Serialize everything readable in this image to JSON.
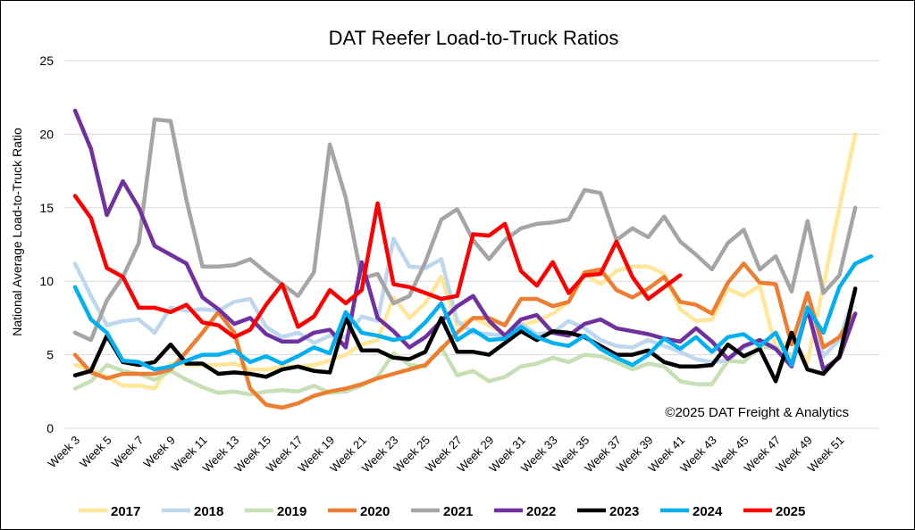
{
  "chart_data": {
    "type": "line",
    "title": "DAT Reefer Load-to-Truck Ratios",
    "y_label": "National Average Load-to-Truck Ratio",
    "annotation": "©2025 DAT Freight & Analytics",
    "categories": [
      "Week 3",
      null,
      "Week 5",
      null,
      "Week 7",
      null,
      "Week 9",
      null,
      "Week 11",
      null,
      "Week 13",
      null,
      "Week 15",
      null,
      "Week 17",
      null,
      "Week 19",
      null,
      "Week 21",
      null,
      "Week 23",
      null,
      "Week 25",
      null,
      "Week 27",
      null,
      "Week 29",
      null,
      "Week 31",
      null,
      "Week 33",
      null,
      "Week 35",
      null,
      "Week 37",
      null,
      "Week 39",
      null,
      "Week 41",
      null,
      "Week 43",
      null,
      "Week 45",
      null,
      "Week 47",
      null,
      "Week 49",
      null,
      "Week 51",
      null,
      null
    ],
    "ylim": [
      0,
      25
    ],
    "yticks": [
      0,
      5,
      10,
      15,
      20,
      25
    ],
    "grid": true,
    "legend": "bottom",
    "series": [
      {
        "name": "2017",
        "color": "#ffe699",
        "values": [
          4.3,
          4.0,
          3.5,
          2.9,
          2.9,
          2.7,
          4.4,
          4.3,
          4.3,
          4.3,
          4.4,
          4.0,
          4.0,
          4.2,
          4.2,
          4.3,
          4.6,
          5.0,
          5.7,
          6.0,
          8.9,
          7.5,
          8.5,
          10.3,
          7.0,
          7.5,
          7.0,
          6.4,
          7.0,
          7.3,
          7.8,
          8.6,
          10.5,
          9.8,
          10.7,
          11.0,
          11.0,
          10.5,
          8.1,
          7.3,
          7.4,
          9.5,
          9.0,
          9.7,
          5.5,
          6.0,
          4.5,
          9.7,
          15.0,
          20.0,
          null
        ]
      },
      {
        "name": "2018",
        "color": "#bdd7ee",
        "values": [
          11.2,
          9.0,
          7.0,
          7.3,
          7.4,
          6.5,
          8.2,
          8.0,
          8.1,
          8.0,
          8.6,
          8.8,
          6.9,
          6.2,
          6.5,
          5.8,
          6.3,
          6.2,
          7.6,
          7.3,
          12.9,
          11.0,
          10.9,
          11.5,
          7.3,
          6.5,
          6.4,
          6.3,
          7.1,
          6.4,
          6.5,
          7.3,
          6.8,
          6.0,
          5.6,
          5.5,
          6.0,
          5.6,
          5.2,
          4.7,
          4.5,
          4.6,
          5.5,
          6.0,
          5.5,
          4.5,
          8.3,
          4.9,
          6.0,
          9.3,
          null
        ]
      },
      {
        "name": "2019",
        "color": "#c5e0b4",
        "values": [
          2.7,
          3.2,
          4.3,
          3.9,
          3.7,
          3.3,
          3.9,
          3.3,
          2.8,
          2.4,
          2.5,
          2.3,
          2.5,
          2.6,
          2.5,
          2.9,
          2.4,
          2.5,
          2.9,
          3.5,
          5.1,
          4.3,
          4.2,
          5.5,
          3.6,
          3.9,
          3.2,
          3.5,
          4.2,
          4.4,
          4.8,
          4.5,
          5.0,
          4.9,
          4.5,
          4.0,
          4.4,
          4.2,
          3.2,
          3.0,
          3.0,
          4.6,
          4.5,
          5.6,
          5.4,
          5.0,
          null,
          null,
          null,
          null,
          null
        ]
      },
      {
        "name": "2020",
        "color": "#ed7d31",
        "values": [
          5.0,
          3.8,
          3.4,
          3.7,
          3.7,
          3.7,
          4.0,
          5.2,
          6.5,
          7.9,
          6.5,
          2.7,
          1.6,
          1.4,
          1.7,
          2.2,
          2.5,
          2.7,
          3.0,
          3.4,
          3.7,
          4.0,
          4.3,
          5.4,
          6.5,
          7.5,
          7.5,
          7.0,
          8.8,
          8.8,
          8.3,
          8.6,
          10.6,
          10.8,
          9.4,
          8.9,
          9.5,
          10.3,
          8.6,
          8.4,
          7.8,
          9.9,
          11.2,
          9.9,
          9.8,
          5.7,
          9.2,
          5.5,
          6.2,
          7.8,
          null
        ]
      },
      {
        "name": "2021",
        "color": "#a5a5a5",
        "values": [
          6.5,
          6.0,
          8.7,
          10.3,
          12.6,
          21.0,
          20.9,
          15.5,
          11.0,
          11.0,
          11.1,
          11.5,
          10.6,
          9.8,
          9.0,
          10.6,
          19.3,
          15.7,
          10.2,
          10.5,
          8.5,
          9.0,
          11.3,
          14.2,
          14.9,
          12.8,
          11.5,
          12.8,
          13.6,
          13.9,
          14.0,
          14.2,
          16.2,
          16.0,
          12.8,
          13.6,
          13.0,
          14.4,
          12.7,
          11.8,
          10.8,
          12.6,
          13.5,
          10.8,
          11.7,
          9.3,
          14.1,
          9.2,
          10.4,
          15.0,
          null
        ]
      },
      {
        "name": "2022",
        "color": "#7030a0",
        "values": [
          21.6,
          19.0,
          14.5,
          16.8,
          15.0,
          12.4,
          11.8,
          11.2,
          8.9,
          8.1,
          7.1,
          7.5,
          6.4,
          5.9,
          5.9,
          6.5,
          6.7,
          5.5,
          11.3,
          7.5,
          6.6,
          5.5,
          6.2,
          7.3,
          8.3,
          9.0,
          7.3,
          6.3,
          7.4,
          7.7,
          6.5,
          6.3,
          7.1,
          7.4,
          6.8,
          6.6,
          6.4,
          6.1,
          5.9,
          6.8,
          5.9,
          4.7,
          5.6,
          6.0,
          5.4,
          4.2,
          8.1,
          4.0,
          4.8,
          7.8,
          null
        ]
      },
      {
        "name": "2023",
        "color": "#000000",
        "values": [
          3.6,
          3.9,
          6.3,
          4.5,
          4.3,
          4.5,
          5.7,
          4.4,
          4.4,
          3.7,
          3.8,
          3.7,
          3.5,
          4.0,
          4.2,
          3.9,
          3.8,
          7.5,
          5.3,
          5.3,
          4.8,
          4.7,
          5.2,
          7.5,
          5.2,
          5.2,
          5.0,
          5.8,
          6.6,
          6.0,
          6.6,
          6.5,
          6.2,
          5.6,
          5.0,
          5.0,
          5.3,
          4.5,
          4.2,
          4.2,
          4.3,
          5.7,
          4.9,
          5.4,
          3.2,
          6.5,
          4.0,
          3.7,
          4.9,
          9.5,
          null
        ]
      },
      {
        "name": "2024",
        "color": "#00b0f0",
        "values": [
          9.6,
          7.4,
          6.5,
          4.6,
          4.5,
          4.0,
          4.2,
          4.6,
          5.0,
          5.0,
          5.3,
          4.5,
          4.9,
          4.4,
          4.9,
          5.5,
          5.1,
          7.9,
          6.5,
          6.3,
          6.0,
          6.2,
          7.2,
          8.5,
          6.0,
          6.7,
          6.0,
          6.1,
          6.9,
          6.2,
          5.8,
          5.6,
          6.3,
          5.4,
          4.8,
          4.3,
          5.0,
          6.1,
          5.4,
          6.2,
          5.2,
          6.2,
          6.4,
          5.6,
          6.5,
          4.3,
          8.2,
          6.5,
          9.6,
          11.2,
          11.7
        ]
      },
      {
        "name": "2025",
        "color": "#ff0000",
        "values": [
          15.8,
          14.3,
          10.9,
          10.3,
          8.2,
          8.2,
          7.9,
          8.4,
          7.2,
          7.0,
          6.2,
          6.7,
          8.4,
          9.8,
          6.9,
          7.6,
          9.4,
          8.5,
          9.4,
          15.3,
          9.8,
          9.6,
          9.2,
          8.8,
          9.0,
          13.2,
          13.1,
          13.9,
          10.7,
          9.7,
          11.3,
          9.2,
          10.4,
          10.5,
          12.7,
          10.3,
          8.8,
          9.6,
          10.4,
          null,
          null,
          null,
          null,
          null,
          null,
          null,
          null,
          null,
          null,
          null,
          null
        ]
      }
    ]
  }
}
